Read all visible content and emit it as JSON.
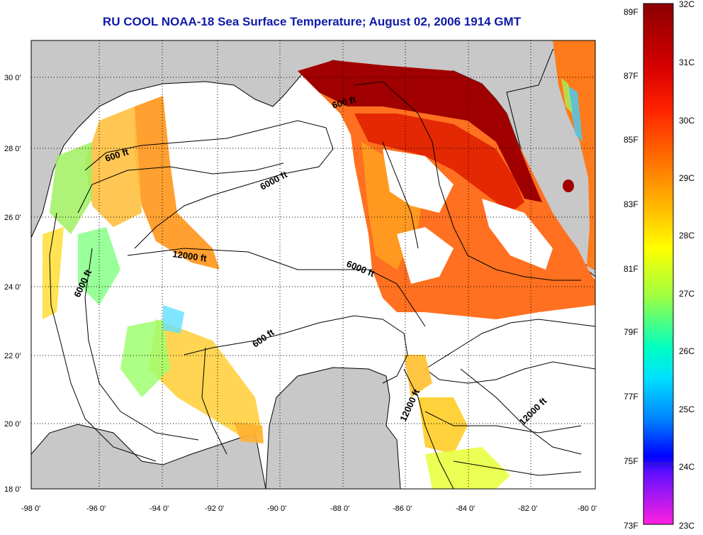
{
  "title": "RU COOL  NOAA-18  Sea Surface Temperature;  August 02, 2006 1914 GMT",
  "map": {
    "lat_ticks": [
      "30 0'",
      "28 0'",
      "26 0'",
      "24 0'",
      "22 0'",
      "20 0'",
      "18 0'"
    ],
    "lon_ticks": [
      "-98 0'",
      "-96 0'",
      "-94 0'",
      "-92 0'",
      "-90 0'",
      "-88 0'",
      "-86 0'",
      "-84 0'",
      "-82 0'",
      "-80 0'"
    ],
    "lat_range": [
      18,
      31.3
    ],
    "lon_range": [
      -98,
      -80
    ],
    "grid": true,
    "land_color": "#c8c8c8",
    "no_data_color": "#ffffff"
  },
  "contours": {
    "labels": [
      "600 ft",
      "600 ft",
      "600 ft",
      "6000 ft",
      "6000 ft",
      "6000 ft",
      "12000 ft",
      "12000 ft",
      "12000 ft"
    ]
  },
  "colorbar": {
    "f_labels": [
      "89F",
      "87F",
      "85F",
      "83F",
      "81F",
      "79F",
      "77F",
      "75F",
      "73F"
    ],
    "c_labels": [
      "32C",
      "31C",
      "30C",
      "29C",
      "28C",
      "27C",
      "26C",
      "25C",
      "24C",
      "23C"
    ],
    "colors": [
      "#8b0000",
      "#ff0000",
      "#ff7f00",
      "#ffff00",
      "#7fff7f",
      "#00ffff",
      "#007fff",
      "#0000ff",
      "#7f00ff",
      "#ff00ff"
    ]
  }
}
